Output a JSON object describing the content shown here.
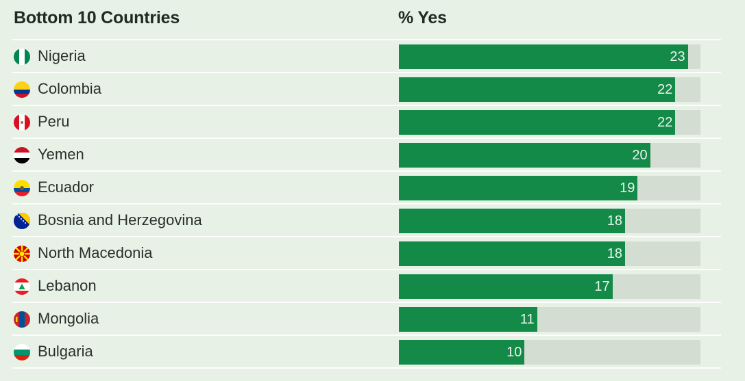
{
  "chart_data": {
    "type": "bar",
    "orientation": "horizontal",
    "category_header": "Bottom 10 Countries",
    "value_header": "% Yes",
    "categories": [
      "Nigeria",
      "Colombia",
      "Peru",
      "Yemen",
      "Ecuador",
      "Bosnia and Herzegovina",
      "North Macedonia",
      "Lebanon",
      "Mongolia",
      "Bulgaria"
    ],
    "values": [
      23,
      22,
      22,
      20,
      19,
      18,
      18,
      17,
      11,
      10
    ],
    "xlim": [
      0,
      24
    ],
    "grid": false,
    "legend": "none"
  },
  "flags": [
    "nigeria-flag-icon",
    "colombia-flag-icon",
    "peru-flag-icon",
    "yemen-flag-icon",
    "ecuador-flag-icon",
    "bosnia-and-herzegovina-flag-icon",
    "north-macedonia-flag-icon",
    "lebanon-flag-icon",
    "mongolia-flag-icon",
    "bulgaria-flag-icon"
  ],
  "colors": {
    "background": "#e8f1e6",
    "bar": "#148a48",
    "track": "#d4ddd2",
    "header_text": "#1f2a22",
    "label_text": "#2a302c",
    "value_text": "#e9f4ec"
  }
}
